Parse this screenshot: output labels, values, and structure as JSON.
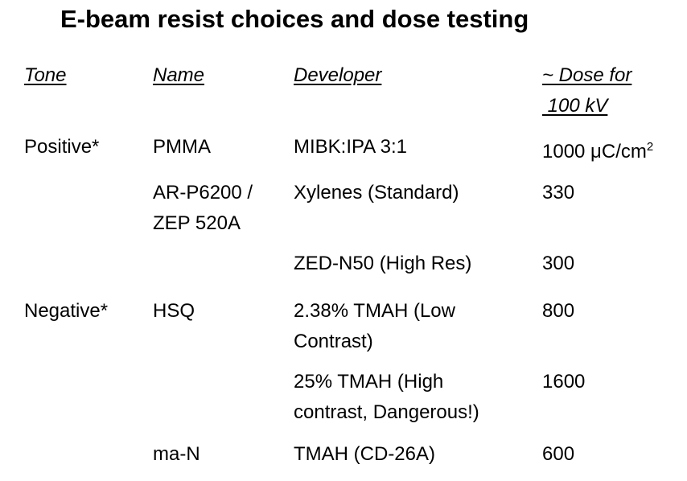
{
  "title": "E-beam resist choices and dose testing",
  "headers": {
    "tone": "Tone",
    "name": "Name",
    "developer": "Developer",
    "dose_line1": "~ Dose for",
    "dose_line2": " 100 kV"
  },
  "rows": [
    {
      "tone": "Positive*",
      "name": "PMMA",
      "name_line2": "",
      "developer": "MIBK:IPA 3:1",
      "developer_line2": "",
      "dose": "1000 μC/cm",
      "dose_sup": "2"
    },
    {
      "tone": "",
      "name": "AR-P6200 /",
      "name_line2": "ZEP 520A",
      "developer": "Xylenes (Standard)",
      "developer_line2": "",
      "dose": "330",
      "dose_sup": ""
    },
    {
      "tone": "",
      "name": "",
      "name_line2": "",
      "developer": "ZED-N50 (High Res)",
      "developer_line2": "",
      "dose": "300",
      "dose_sup": ""
    },
    {
      "tone": "Negative*",
      "name": "HSQ",
      "name_line2": "",
      "developer": "2.38% TMAH (Low",
      "developer_line2": "Contrast)",
      "dose": "800",
      "dose_sup": ""
    },
    {
      "tone": "",
      "name": "",
      "name_line2": "",
      "developer": "25% TMAH (High",
      "developer_line2": "contrast, Dangerous!)",
      "dose": "1600",
      "dose_sup": ""
    },
    {
      "tone": "",
      "name": "ma-N",
      "name_line2": "",
      "developer": "TMAH (CD-26A)",
      "developer_line2": "",
      "dose": "600",
      "dose_sup": ""
    }
  ]
}
